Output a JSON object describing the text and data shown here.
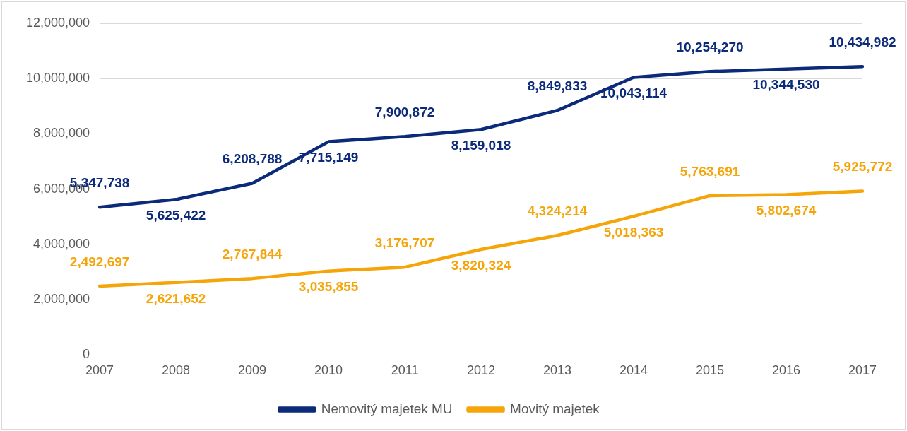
{
  "chart_data": {
    "type": "line",
    "categories": [
      "2007",
      "2008",
      "2009",
      "2010",
      "2011",
      "2012",
      "2013",
      "2014",
      "2015",
      "2016",
      "2017"
    ],
    "series": [
      {
        "name": "Nemovitý majetek MU",
        "color": "#0c2a7a",
        "values": [
          5347738,
          5625422,
          6208788,
          7715149,
          7900872,
          8159018,
          8849833,
          10043114,
          10254270,
          10344530,
          10434982
        ],
        "value_labels": [
          "5,347,738",
          "5,625,422",
          "6,208,788",
          "7,715,149",
          "7,900,872",
          "8,159,018",
          "8,849,833",
          "10,043,114",
          "10,254,270",
          "10,344,530",
          "10,434,982"
        ]
      },
      {
        "name": "Movitý majetek",
        "color": "#f5a50a",
        "values": [
          2492697,
          2621652,
          2767844,
          3035855,
          3176707,
          3820324,
          4324214,
          5018363,
          5763691,
          5802674,
          5925772
        ],
        "value_labels": [
          "2,492,697",
          "2,621,652",
          "2,767,844",
          "3,035,855",
          "3,176,707",
          "3,820,324",
          "4,324,214",
          "5,018,363",
          "5,763,691",
          "5,802,674",
          "5,925,772"
        ]
      }
    ],
    "ylim": [
      0,
      12000000
    ],
    "yticks": [
      0,
      {
        "value": 2000000,
        "label": "2,000,000"
      },
      {
        "value": 4000000,
        "label": "4,000,000"
      },
      {
        "value": 6000000,
        "label": "6,000,000"
      },
      {
        "value": 8000000,
        "label": "8,000,000"
      },
      {
        "value": 10000000,
        "label": "10,000,000"
      },
      {
        "value": 12000000,
        "label": "12,000,000"
      }
    ],
    "grid": "y",
    "legend": "bottom",
    "marker": "none",
    "line_style": "solid"
  }
}
